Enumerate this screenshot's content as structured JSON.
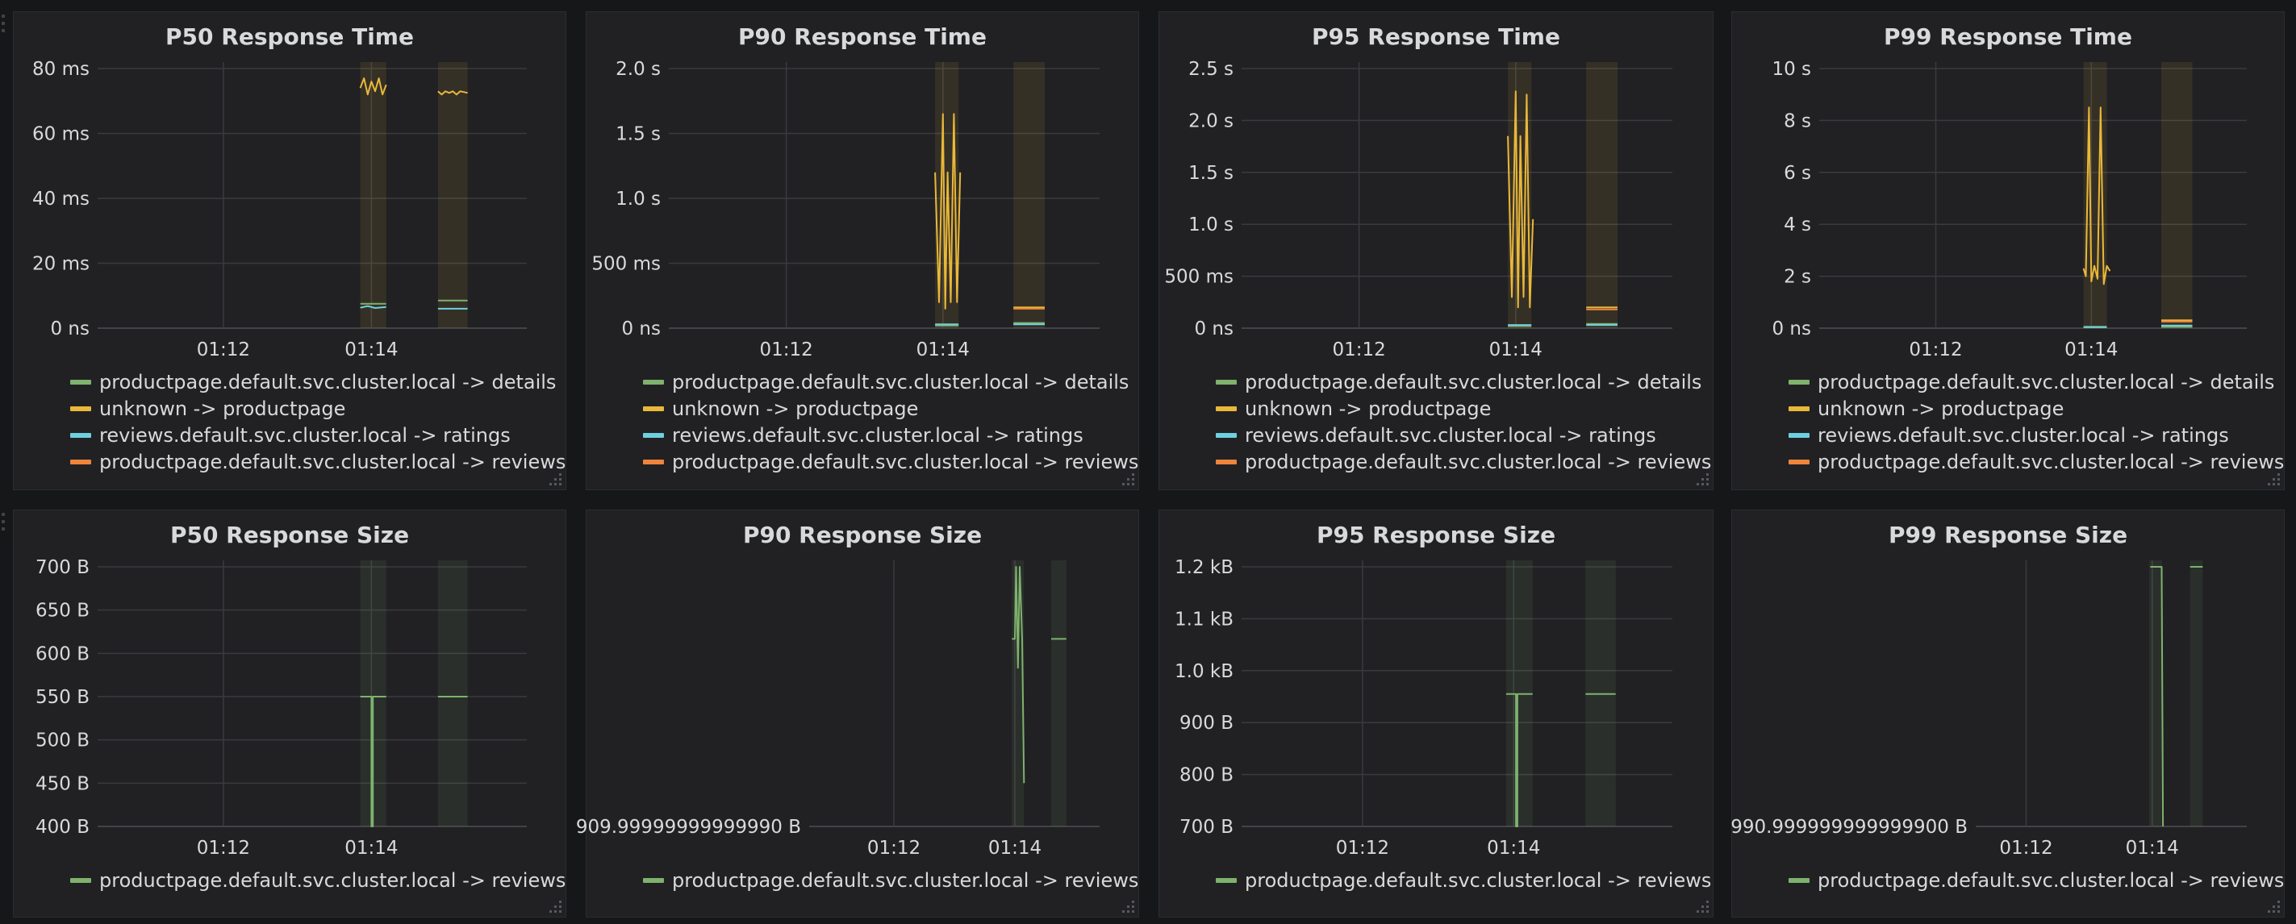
{
  "colors": {
    "green": "#7eb26d",
    "yellow": "#eab839",
    "cyan": "#6ed0e0",
    "orange": "#ef843c"
  },
  "icons": {
    "resize": "resize-handle-icon",
    "drag": "drag-grip-icon"
  },
  "chart_data": [
    {
      "type": "line",
      "title": "P50 Response Time",
      "x_tick_labels": [
        "01:12",
        "01:14"
      ],
      "y_tick_labels": [
        "0 ns",
        "20 ms",
        "40 ms",
        "60 ms",
        "80 ms"
      ],
      "y_ticks": [
        0,
        20,
        40,
        60,
        80
      ],
      "ylim": [
        0,
        80
      ],
      "x_ticks": [
        10,
        12
      ],
      "xlim": [
        8.3,
        14.1
      ],
      "bands": [
        [
          11.85,
          12.2
        ],
        [
          12.9,
          13.3
        ]
      ],
      "series": [
        {
          "name": "productpage.default.svc.cluster.local -> details",
          "color": "#7eb26d",
          "segments": [
            [
              [
                11.85,
                7.5
              ],
              [
                12.2,
                7.5
              ]
            ],
            [
              [
                12.9,
                8.5
              ],
              [
                13.3,
                8.5
              ]
            ]
          ]
        },
        {
          "name": "unknown -> productpage",
          "color": "#eab839",
          "segments": [
            [
              [
                11.85,
                74
              ],
              [
                11.9,
                77
              ],
              [
                11.95,
                72
              ],
              [
                12.0,
                76
              ],
              [
                12.05,
                73
              ],
              [
                12.1,
                77
              ],
              [
                12.15,
                72
              ],
              [
                12.2,
                75
              ]
            ],
            [
              [
                12.9,
                73
              ],
              [
                12.95,
                72
              ],
              [
                13.0,
                73
              ],
              [
                13.05,
                72.5
              ],
              [
                13.1,
                73
              ],
              [
                13.15,
                72
              ],
              [
                13.2,
                73
              ],
              [
                13.3,
                72.5
              ]
            ]
          ]
        },
        {
          "name": "reviews.default.svc.cluster.local -> ratings",
          "color": "#6ed0e0",
          "segments": [
            [
              [
                11.85,
                6.3
              ],
              [
                11.95,
                6.8
              ],
              [
                12.05,
                6.2
              ],
              [
                12.2,
                6.5
              ]
            ],
            [
              [
                12.9,
                6
              ],
              [
                13.3,
                6
              ]
            ]
          ]
        },
        {
          "name": "productpage.default.svc.cluster.local -> reviews",
          "color": "#ef843c",
          "segments": []
        }
      ]
    },
    {
      "type": "line",
      "title": "P90 Response Time",
      "x_tick_labels": [
        "01:12",
        "01:14"
      ],
      "y_tick_labels": [
        "0 ns",
        "500 ms",
        "1.0 s",
        "1.5 s",
        "2.0 s"
      ],
      "y_ticks": [
        0,
        0.5,
        1.0,
        1.5,
        2.0
      ],
      "ylim": [
        0,
        2.0
      ],
      "x_ticks": [
        10,
        12
      ],
      "xlim": [
        8.5,
        14.0
      ],
      "bands": [
        [
          11.9,
          12.2
        ],
        [
          12.9,
          13.3
        ]
      ],
      "series": [
        {
          "name": "productpage.default.svc.cluster.local -> details",
          "color": "#7eb26d",
          "segments": [
            [
              [
                11.9,
                0.02
              ],
              [
                12.2,
                0.02
              ]
            ],
            [
              [
                12.9,
                0.04
              ],
              [
                13.3,
                0.04
              ]
            ]
          ]
        },
        {
          "name": "unknown -> productpage",
          "color": "#eab839",
          "segments": [
            [
              [
                11.9,
                1.2
              ],
              [
                11.95,
                0.2
              ],
              [
                12.0,
                1.65
              ],
              [
                12.03,
                0.15
              ],
              [
                12.06,
                1.2
              ],
              [
                12.1,
                0.2
              ],
              [
                12.14,
                1.65
              ],
              [
                12.18,
                0.2
              ],
              [
                12.22,
                1.2
              ]
            ],
            [
              [
                12.9,
                0.16
              ],
              [
                13.3,
                0.16
              ]
            ]
          ]
        },
        {
          "name": "reviews.default.svc.cluster.local -> ratings",
          "color": "#6ed0e0",
          "segments": [
            [
              [
                11.9,
                0.03
              ],
              [
                12.2,
                0.03
              ]
            ],
            [
              [
                12.9,
                0.03
              ],
              [
                13.3,
                0.03
              ]
            ]
          ]
        },
        {
          "name": "productpage.default.svc.cluster.local -> reviews",
          "color": "#ef843c",
          "segments": [
            [
              [
                12.9,
                0.15
              ],
              [
                13.3,
                0.15
              ]
            ]
          ]
        }
      ]
    },
    {
      "type": "line",
      "title": "P95 Response Time",
      "x_tick_labels": [
        "01:12",
        "01:14"
      ],
      "y_tick_labels": [
        "0 ns",
        "500 ms",
        "1.0 s",
        "1.5 s",
        "2.0 s",
        "2.5 s"
      ],
      "y_ticks": [
        0,
        0.5,
        1.0,
        1.5,
        2.0,
        2.5
      ],
      "ylim": [
        0,
        2.5
      ],
      "x_ticks": [
        10,
        12
      ],
      "xlim": [
        8.5,
        14.0
      ],
      "bands": [
        [
          11.9,
          12.2
        ],
        [
          12.9,
          13.3
        ]
      ],
      "series": [
        {
          "name": "productpage.default.svc.cluster.local -> details",
          "color": "#7eb26d",
          "segments": [
            [
              [
                11.9,
                0.02
              ],
              [
                12.2,
                0.02
              ]
            ],
            [
              [
                12.9,
                0.04
              ],
              [
                13.3,
                0.04
              ]
            ]
          ]
        },
        {
          "name": "unknown -> productpage",
          "color": "#eab839",
          "segments": [
            [
              [
                11.9,
                1.85
              ],
              [
                11.95,
                0.3
              ],
              [
                12.0,
                2.28
              ],
              [
                12.03,
                0.2
              ],
              [
                12.06,
                1.85
              ],
              [
                12.1,
                0.3
              ],
              [
                12.14,
                2.25
              ],
              [
                12.18,
                0.2
              ],
              [
                12.22,
                1.05
              ]
            ],
            [
              [
                12.9,
                0.2
              ],
              [
                13.3,
                0.2
              ]
            ]
          ]
        },
        {
          "name": "reviews.default.svc.cluster.local -> ratings",
          "color": "#6ed0e0",
          "segments": [
            [
              [
                11.9,
                0.03
              ],
              [
                12.2,
                0.03
              ]
            ],
            [
              [
                12.9,
                0.03
              ],
              [
                13.3,
                0.03
              ]
            ]
          ]
        },
        {
          "name": "productpage.default.svc.cluster.local -> reviews",
          "color": "#ef843c",
          "segments": [
            [
              [
                12.9,
                0.18
              ],
              [
                13.3,
                0.18
              ]
            ]
          ]
        }
      ]
    },
    {
      "type": "line",
      "title": "P99 Response Time",
      "x_tick_labels": [
        "01:12",
        "01:14"
      ],
      "y_tick_labels": [
        "0 ns",
        "2 s",
        "4 s",
        "6 s",
        "8 s",
        "10 s"
      ],
      "y_ticks": [
        0,
        2,
        4,
        6,
        8,
        10
      ],
      "ylim": [
        0,
        10
      ],
      "x_ticks": [
        10,
        12
      ],
      "xlim": [
        8.5,
        14.0
      ],
      "bands": [
        [
          11.9,
          12.2
        ],
        [
          12.9,
          13.3
        ]
      ],
      "series": [
        {
          "name": "productpage.default.svc.cluster.local -> details",
          "color": "#7eb26d",
          "segments": [
            [
              [
                11.9,
                0.03
              ],
              [
                12.2,
                0.03
              ]
            ],
            [
              [
                12.9,
                0.05
              ],
              [
                13.3,
                0.05
              ]
            ]
          ]
        },
        {
          "name": "unknown -> productpage",
          "color": "#eab839",
          "segments": [
            [
              [
                11.9,
                2.3
              ],
              [
                11.93,
                2.0
              ],
              [
                11.97,
                8.5
              ],
              [
                12.0,
                1.8
              ],
              [
                12.04,
                2.4
              ],
              [
                12.08,
                1.9
              ],
              [
                12.12,
                8.5
              ],
              [
                12.16,
                1.7
              ],
              [
                12.2,
                2.4
              ],
              [
                12.24,
                2.2
              ]
            ],
            [
              [
                12.9,
                0.3
              ],
              [
                13.3,
                0.3
              ]
            ]
          ]
        },
        {
          "name": "reviews.default.svc.cluster.local -> ratings",
          "color": "#6ed0e0",
          "segments": [
            [
              [
                11.9,
                0.05
              ],
              [
                12.2,
                0.05
              ]
            ],
            [
              [
                12.9,
                0.1
              ],
              [
                13.3,
                0.1
              ]
            ]
          ]
        },
        {
          "name": "productpage.default.svc.cluster.local -> reviews",
          "color": "#ef843c",
          "segments": [
            [
              [
                12.9,
                0.25
              ],
              [
                13.3,
                0.25
              ]
            ]
          ]
        }
      ]
    },
    {
      "type": "line",
      "title": "P50 Response Size",
      "x_tick_labels": [
        "01:12",
        "01:14"
      ],
      "y_tick_labels": [
        "400 B",
        "450 B",
        "500 B",
        "550 B",
        "600 B",
        "650 B",
        "700 B"
      ],
      "y_ticks": [
        400,
        450,
        500,
        550,
        600,
        650,
        700
      ],
      "ylim": [
        400,
        700
      ],
      "x_ticks": [
        10,
        12
      ],
      "xlim": [
        8.3,
        14.1
      ],
      "bands": [
        [
          11.85,
          12.2
        ],
        [
          12.9,
          13.3
        ]
      ],
      "series": [
        {
          "name": "productpage.default.svc.cluster.local -> reviews",
          "color": "#7eb26d",
          "segments": [
            [
              [
                11.85,
                550
              ],
              [
                12.0,
                550
              ],
              [
                12.0,
                400
              ],
              [
                12.02,
                400
              ],
              [
                12.02,
                550
              ],
              [
                12.2,
                550
              ]
            ],
            [
              [
                12.9,
                550
              ],
              [
                13.3,
                550
              ]
            ]
          ]
        }
      ]
    },
    {
      "type": "line",
      "title": "P90 Response Size",
      "x_tick_labels": [
        "01:12",
        "01:14"
      ],
      "y_tick_labels": [
        "909.99999999999990 B"
      ],
      "y_ticks": [
        910
      ],
      "ylim": [
        910,
        1000
      ],
      "x_ticks": [
        10,
        12
      ],
      "xlim": [
        8.6,
        13.4
      ],
      "bands": [
        [
          11.95,
          12.15
        ],
        [
          12.6,
          12.85
        ]
      ],
      "series": [
        {
          "name": "productpage.default.svc.cluster.local -> reviews",
          "color": "#7eb26d",
          "segments": [
            [
              [
                11.95,
                975
              ],
              [
                12.0,
                975
              ],
              [
                12.02,
                1000
              ],
              [
                12.05,
                965
              ],
              [
                12.08,
                1000
              ],
              [
                12.12,
                975
              ],
              [
                12.15,
                925
              ]
            ],
            [
              [
                12.6,
                975
              ],
              [
                12.85,
                975
              ]
            ]
          ]
        }
      ]
    },
    {
      "type": "line",
      "title": "P95 Response Size",
      "x_tick_labels": [
        "01:12",
        "01:14"
      ],
      "y_tick_labels": [
        "700 B",
        "800 B",
        "900 B",
        "1.0 kB",
        "1.1 kB",
        "1.2 kB"
      ],
      "y_ticks": [
        700,
        800,
        900,
        1000,
        1100,
        1200
      ],
      "ylim": [
        700,
        1200
      ],
      "x_ticks": [
        10,
        12
      ],
      "xlim": [
        8.4,
        14.1
      ],
      "bands": [
        [
          11.9,
          12.25
        ],
        [
          12.95,
          13.35
        ]
      ],
      "series": [
        {
          "name": "productpage.default.svc.cluster.local -> reviews",
          "color": "#7eb26d",
          "segments": [
            [
              [
                11.9,
                955
              ],
              [
                12.03,
                955
              ],
              [
                12.03,
                700
              ],
              [
                12.05,
                700
              ],
              [
                12.05,
                955
              ],
              [
                12.25,
                955
              ]
            ],
            [
              [
                12.95,
                955
              ],
              [
                13.35,
                955
              ]
            ]
          ]
        }
      ]
    },
    {
      "type": "line",
      "title": "P99 Response Size",
      "x_tick_labels": [
        "01:12",
        "01:14"
      ],
      "y_tick_labels": [
        "990.999999999999900 B"
      ],
      "y_ticks": [
        991
      ],
      "ylim": [
        991,
        1200
      ],
      "x_ticks": [
        10,
        12
      ],
      "xlim": [
        9.2,
        13.5
      ],
      "bands": [
        [
          11.95,
          12.15
        ],
        [
          12.6,
          12.8
        ]
      ],
      "series": [
        {
          "name": "productpage.default.svc.cluster.local -> reviews",
          "color": "#7eb26d",
          "segments": [
            [
              [
                11.97,
                1200
              ],
              [
                12.15,
                1200
              ],
              [
                12.17,
                991
              ]
            ],
            [
              [
                12.6,
                1200
              ],
              [
                12.8,
                1200
              ]
            ]
          ]
        }
      ]
    }
  ]
}
